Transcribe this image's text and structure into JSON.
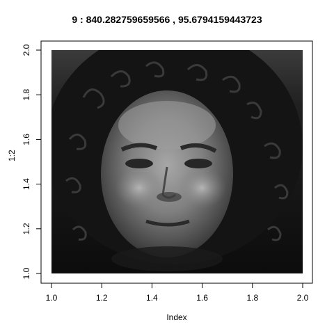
{
  "chart_data": {
    "type": "image",
    "title": "9 : 840.282759659566 ,  95.6794159443723",
    "xlabel": "Index",
    "ylabel": "1:2",
    "xlim": [
      1.0,
      2.0
    ],
    "ylim": [
      1.0,
      2.0
    ],
    "xticks": [
      "1.0",
      "1.2",
      "1.4",
      "1.6",
      "1.8",
      "2.0"
    ],
    "yticks": [
      "1.0",
      "1.2",
      "1.4",
      "1.6",
      "1.8",
      "2.0"
    ],
    "image_content": "grayscale face",
    "grid": false,
    "colors": {
      "background": "#111111",
      "axes": "#000000"
    }
  }
}
